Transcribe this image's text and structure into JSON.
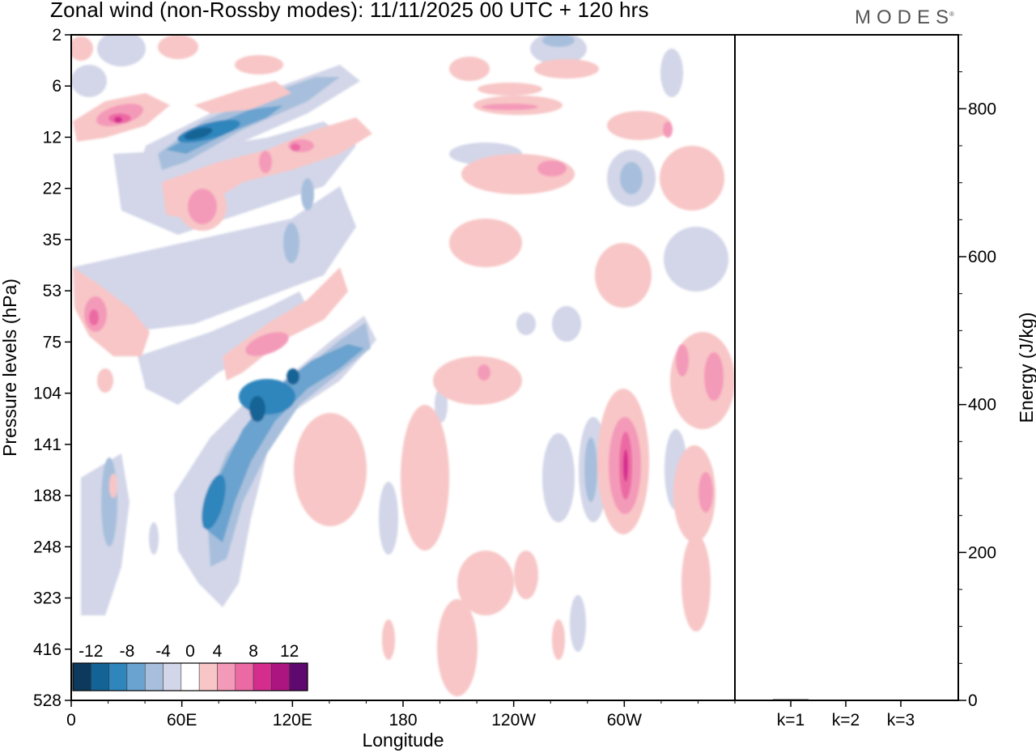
{
  "header": {
    "title": "Zonal wind (non-Rossby modes):  11/11/2025  00 UTC  + 120 hrs",
    "logo_text": "MODES",
    "logo_mark": "®"
  },
  "chart_data": {
    "type": "heatmap",
    "title": "Zonal wind (non-Rossby modes):  11/11/2025  00 UTC  + 120 hrs",
    "xlabel": "Longitude",
    "ylabel": "Pressure levels (hPa)",
    "x_ticks": [
      "0",
      "60E",
      "120E",
      "180",
      "120W",
      "60W"
    ],
    "x_tick_degrees": [
      0,
      60,
      120,
      180,
      240,
      300
    ],
    "x_range_degrees": [
      0,
      360
    ],
    "y_ticks": [
      "2",
      "6",
      "12",
      "22",
      "35",
      "53",
      "75",
      "104",
      "141",
      "188",
      "248",
      "323",
      "416",
      "528"
    ],
    "y_scale": "pressure levels, top = 2 hPa",
    "colorbar": {
      "tick_labels": [
        "-12",
        "-8",
        "-4",
        "0",
        "4",
        "8",
        "12"
      ],
      "levels": [
        -14,
        -12,
        -10,
        -8,
        -6,
        -4,
        -2,
        2,
        4,
        6,
        8,
        10,
        12,
        14
      ],
      "colors": [
        "#0d3a5c",
        "#136396",
        "#2f86bd",
        "#6aa3cf",
        "#a7bfdc",
        "#d2d6e8",
        "#ffffff",
        "#f8c6c6",
        "#f49ab9",
        "#ec6aa3",
        "#d52d8e",
        "#ac157f",
        "#5e0870"
      ]
    },
    "features": [
      {
        "name": "Jet core negative (60E-140E, 100-250 hPa)",
        "min_value": -14
      },
      {
        "name": "Stratospheric negative band (60E-110E, 8-15 hPa)",
        "min_value": -14
      },
      {
        "name": "Positive maximum near 60W (141-188 hPa)",
        "max_value": 12
      },
      {
        "name": "Positive maximum near 20E (53-75 hPa)",
        "max_value": 10
      }
    ],
    "energy_panel": {
      "type": "bar",
      "categories": [
        "k=1",
        "k=2",
        "k=3"
      ],
      "values": [
        1.5,
        1.0,
        1.0
      ],
      "ylabel": "Energy (J/kg)",
      "y_ticks": [
        "0",
        "200",
        "400",
        "600",
        "800"
      ],
      "ylim": [
        0,
        900
      ]
    }
  }
}
